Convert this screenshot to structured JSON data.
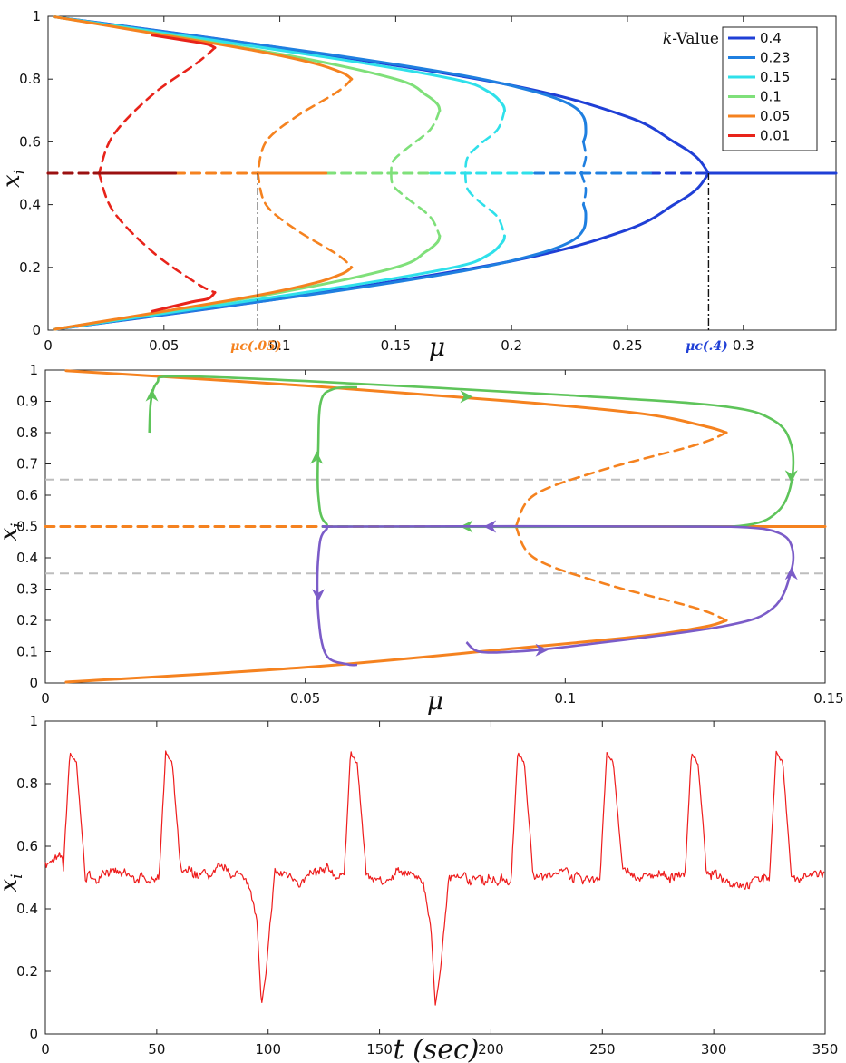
{
  "chart_data": [
    {
      "type": "line",
      "xlabel": "μ",
      "ylabel": "x_i",
      "xlim": [
        0,
        0.34
      ],
      "ylim": [
        0,
        1
      ],
      "xticks": [
        0,
        0.05,
        0.1,
        0.15,
        0.2,
        0.25,
        0.3
      ],
      "yticks": [
        0,
        0.2,
        0.4,
        0.6,
        0.8,
        1
      ],
      "legend": {
        "title_italic": "k",
        "title_rest": "-Value",
        "placement": "top-right",
        "entries": [
          {
            "label": "0.4",
            "color": "#1f3fd6"
          },
          {
            "label": "0.23",
            "color": "#1f7fe0"
          },
          {
            "label": "0.15",
            "color": "#2fe0ea"
          },
          {
            "label": "0.1",
            "color": "#7fe07a"
          },
          {
            "label": "0.05",
            "color": "#f5821f"
          },
          {
            "label": "0.01",
            "color": "#e8231a"
          }
        ]
      },
      "annotations": [
        {
          "label": "μc(.05)",
          "color": "#f5821f",
          "x": 0.0905,
          "y": 0.5
        },
        {
          "label": "μc(.4)",
          "color": "#1f3fd6",
          "x": 0.285,
          "y": 0.5
        }
      ],
      "series": [
        {
          "key": "k04",
          "color": "#1f3fd6",
          "stable_upper": [
            [
              0.003,
              0.998
            ],
            [
              0.1,
              0.9
            ],
            [
              0.2,
              0.78
            ],
            [
              0.25,
              0.68
            ],
            [
              0.27,
              0.6
            ],
            [
              0.28,
              0.55
            ],
            [
              0.285,
              0.5
            ]
          ],
          "stable_lower": [
            [
              0.003,
              0.003
            ],
            [
              0.1,
              0.1
            ],
            [
              0.2,
              0.22
            ],
            [
              0.25,
              0.32
            ],
            [
              0.27,
              0.4
            ],
            [
              0.28,
              0.45
            ],
            [
              0.285,
              0.5
            ]
          ],
          "baseline_unstable": [
            [
              0.26,
              0.5
            ],
            [
              0.285,
              0.5
            ]
          ],
          "baseline_stable": [
            [
              0.285,
              0.5
            ],
            [
              0.34,
              0.5
            ]
          ]
        },
        {
          "key": "k023",
          "color": "#1f7fe0",
          "stable_upper": [
            [
              0.003,
              0.998
            ],
            [
              0.12,
              0.88
            ],
            [
              0.18,
              0.81
            ],
            [
              0.21,
              0.76
            ],
            [
              0.225,
              0.72
            ],
            [
              0.231,
              0.68
            ],
            [
              0.232,
              0.63
            ],
            [
              0.231,
              0.6
            ]
          ],
          "unstable_upper": [
            [
              0.231,
              0.6
            ],
            [
              0.232,
              0.55
            ],
            [
              0.23,
              0.5
            ]
          ],
          "unstable_lower": [
            [
              0.23,
              0.5
            ],
            [
              0.232,
              0.45
            ],
            [
              0.231,
              0.4
            ]
          ],
          "stable_lower": [
            [
              0.231,
              0.4
            ],
            [
              0.232,
              0.37
            ],
            [
              0.231,
              0.32
            ],
            [
              0.225,
              0.28
            ],
            [
              0.21,
              0.24
            ],
            [
              0.18,
              0.19
            ],
            [
              0.12,
              0.12
            ],
            [
              0.003,
              0.003
            ]
          ],
          "baseline": [
            [
              0.21,
              0.5
            ],
            [
              0.26,
              0.5
            ]
          ]
        },
        {
          "key": "k015",
          "color": "#2fe0ea",
          "stable_upper": [
            [
              0.003,
              0.998
            ],
            [
              0.12,
              0.87
            ],
            [
              0.175,
              0.8
            ],
            [
              0.19,
              0.76
            ],
            [
              0.196,
              0.72
            ],
            [
              0.197,
              0.7
            ]
          ],
          "unstable_upper": [
            [
              0.197,
              0.7
            ],
            [
              0.194,
              0.64
            ],
            [
              0.186,
              0.59
            ],
            [
              0.181,
              0.55
            ],
            [
              0.18,
              0.5
            ]
          ],
          "unstable_lower": [
            [
              0.18,
              0.5
            ],
            [
              0.181,
              0.45
            ],
            [
              0.186,
              0.41
            ],
            [
              0.194,
              0.36
            ],
            [
              0.197,
              0.3
            ]
          ],
          "stable_lower": [
            [
              0.197,
              0.3
            ],
            [
              0.196,
              0.28
            ],
            [
              0.19,
              0.24
            ],
            [
              0.175,
              0.2
            ],
            [
              0.12,
              0.13
            ],
            [
              0.003,
              0.003
            ]
          ],
          "baseline": [
            [
              0.165,
              0.5
            ],
            [
              0.21,
              0.5
            ]
          ]
        },
        {
          "key": "k01",
          "color": "#7fe07a",
          "stable_upper": [
            [
              0.003,
              0.998
            ],
            [
              0.1,
              0.88
            ],
            [
              0.15,
              0.8
            ],
            [
              0.163,
              0.75
            ],
            [
              0.168,
              0.72
            ],
            [
              0.169,
              0.7
            ]
          ],
          "unstable_upper": [
            [
              0.169,
              0.7
            ],
            [
              0.165,
              0.64
            ],
            [
              0.155,
              0.58
            ],
            [
              0.149,
              0.54
            ],
            [
              0.148,
              0.5
            ]
          ],
          "unstable_lower": [
            [
              0.148,
              0.5
            ],
            [
              0.149,
              0.46
            ],
            [
              0.155,
              0.42
            ],
            [
              0.165,
              0.36
            ],
            [
              0.169,
              0.3
            ]
          ],
          "stable_lower": [
            [
              0.169,
              0.3
            ],
            [
              0.168,
              0.28
            ],
            [
              0.163,
              0.25
            ],
            [
              0.15,
              0.2
            ],
            [
              0.1,
              0.12
            ],
            [
              0.003,
              0.003
            ]
          ],
          "baseline": [
            [
              0.12,
              0.5
            ],
            [
              0.165,
              0.5
            ]
          ]
        },
        {
          "key": "k005",
          "color": "#f5821f",
          "stable_upper": [
            [
              0.003,
              0.998
            ],
            [
              0.05,
              0.94
            ],
            [
              0.09,
              0.89
            ],
            [
              0.115,
              0.85
            ],
            [
              0.127,
              0.82
            ],
            [
              0.131,
              0.8
            ]
          ],
          "unstable_upper": [
            [
              0.131,
              0.8
            ],
            [
              0.125,
              0.76
            ],
            [
              0.107,
              0.68
            ],
            [
              0.094,
              0.6
            ],
            [
              0.0905,
              0.5
            ]
          ],
          "unstable_lower": [
            [
              0.0905,
              0.5
            ],
            [
              0.094,
              0.4
            ],
            [
              0.107,
              0.32
            ],
            [
              0.125,
              0.24
            ],
            [
              0.131,
              0.2
            ]
          ],
          "stable_lower": [
            [
              0.131,
              0.2
            ],
            [
              0.127,
              0.18
            ],
            [
              0.115,
              0.15
            ],
            [
              0.09,
              0.11
            ],
            [
              0.05,
              0.06
            ],
            [
              0.003,
              0.003
            ]
          ],
          "baseline_unstable": [
            [
              0.055,
              0.5
            ],
            [
              0.0905,
              0.5
            ]
          ],
          "baseline_stable": [
            [
              0.0905,
              0.5
            ],
            [
              0.12,
              0.5
            ]
          ]
        },
        {
          "key": "k001",
          "color": "#e8231a",
          "stable_upper": [
            [
              0.045,
              0.94
            ],
            [
              0.062,
              0.92
            ],
            [
              0.069,
              0.91
            ],
            [
              0.072,
              0.9
            ]
          ],
          "unstable_upper": [
            [
              0.072,
              0.9
            ],
            [
              0.064,
              0.85
            ],
            [
              0.045,
              0.75
            ],
            [
              0.028,
              0.62
            ],
            [
              0.022,
              0.5
            ]
          ],
          "unstable_lower": [
            [
              0.022,
              0.5
            ],
            [
              0.028,
              0.38
            ],
            [
              0.045,
              0.25
            ],
            [
              0.064,
              0.15
            ],
            [
              0.072,
              0.12
            ]
          ],
          "stable_lower": [
            [
              0.072,
              0.12
            ],
            [
              0.069,
              0.1
            ],
            [
              0.062,
              0.09
            ],
            [
              0.045,
              0.06
            ]
          ],
          "baseline_unstable": [
            [
              0,
              0.5
            ],
            [
              0.022,
              0.5
            ]
          ],
          "baseline_stable": [
            [
              0.022,
              0.5
            ],
            [
              0.055,
              0.5
            ]
          ]
        }
      ]
    },
    {
      "type": "line",
      "xlabel": "μ",
      "ylabel": "x_i",
      "xlim": [
        0,
        0.15
      ],
      "ylim": [
        0,
        1
      ],
      "xticks": [
        0,
        0.05,
        0.1,
        0.15
      ],
      "yticks": [
        0,
        0.1,
        0.2,
        0.3,
        0.4,
        0.5,
        0.6,
        0.7,
        0.8,
        0.9,
        1
      ],
      "thresholds": [
        0.65,
        0.35
      ],
      "series": [
        {
          "name": "bifurcation k=0.05",
          "color": "#f5821f",
          "stable_upper": [
            [
              0.004,
              0.998
            ],
            [
              0.05,
              0.95
            ],
            [
              0.09,
              0.9
            ],
            [
              0.115,
              0.86
            ],
            [
              0.127,
              0.82
            ],
            [
              0.131,
              0.8
            ]
          ],
          "unstable_upper": [
            [
              0.131,
              0.8
            ],
            [
              0.125,
              0.76
            ],
            [
              0.107,
              0.68
            ],
            [
              0.094,
              0.6
            ],
            [
              0.0905,
              0.5
            ]
          ],
          "unstable_lower": [
            [
              0.0905,
              0.5
            ],
            [
              0.094,
              0.4
            ],
            [
              0.107,
              0.32
            ],
            [
              0.125,
              0.24
            ],
            [
              0.131,
              0.2
            ]
          ],
          "stable_lower": [
            [
              0.131,
              0.2
            ],
            [
              0.127,
              0.18
            ],
            [
              0.115,
              0.15
            ],
            [
              0.09,
              0.11
            ],
            [
              0.05,
              0.05
            ],
            [
              0.004,
              0.003
            ]
          ],
          "baseline_unstable": [
            [
              0,
              0.5
            ],
            [
              0.0905,
              0.5
            ]
          ],
          "baseline_stable": [
            [
              0.0905,
              0.5
            ],
            [
              0.15,
              0.5
            ]
          ]
        },
        {
          "name": "trajectory upper",
          "color": "#5ec45a",
          "path": [
            [
              0.02,
              0.8
            ],
            [
              0.0203,
              0.9
            ],
            [
              0.0215,
              0.96
            ],
            [
              0.025,
              0.98
            ],
            [
              0.05,
              0.965
            ],
            [
              0.1,
              0.92
            ],
            [
              0.13,
              0.885
            ],
            [
              0.14,
              0.84
            ],
            [
              0.1435,
              0.76
            ],
            [
              0.1435,
              0.64
            ],
            [
              0.141,
              0.55
            ],
            [
              0.135,
              0.505
            ],
            [
              0.12,
              0.5
            ],
            [
              0.06,
              0.5
            ],
            [
              0.054,
              0.51
            ],
            [
              0.0525,
              0.6
            ],
            [
              0.0525,
              0.75
            ],
            [
              0.053,
              0.9
            ],
            [
              0.0555,
              0.94
            ],
            [
              0.06,
              0.945
            ]
          ],
          "arrows": [
            [
              0.0205,
              0.92,
              "up"
            ],
            [
              0.0522,
              0.72,
              "up"
            ],
            [
              0.081,
              0.915,
              "right"
            ],
            [
              0.1435,
              0.66,
              "down"
            ],
            [
              0.081,
              0.5,
              "left"
            ]
          ]
        },
        {
          "name": "trajectory lower",
          "color": "#7b5cc8",
          "path": [
            [
              0.081,
              0.13
            ],
            [
              0.0835,
              0.1
            ],
            [
              0.09,
              0.1
            ],
            [
              0.1,
              0.115
            ],
            [
              0.13,
              0.18
            ],
            [
              0.14,
              0.24
            ],
            [
              0.1435,
              0.36
            ],
            [
              0.1435,
              0.44
            ],
            [
              0.141,
              0.48
            ],
            [
              0.135,
              0.497
            ],
            [
              0.12,
              0.5
            ],
            [
              0.06,
              0.5
            ],
            [
              0.054,
              0.49
            ],
            [
              0.0525,
              0.4
            ],
            [
              0.0525,
              0.22
            ],
            [
              0.054,
              0.09
            ],
            [
              0.058,
              0.06
            ],
            [
              0.06,
              0.058
            ]
          ],
          "arrows": [
            [
              0.0955,
              0.105,
              "right"
            ],
            [
              0.1435,
              0.35,
              "up"
            ],
            [
              0.0855,
              0.5,
              "left"
            ],
            [
              0.0525,
              0.28,
              "down"
            ]
          ]
        }
      ]
    },
    {
      "type": "line",
      "xlabel": "t (sec)",
      "ylabel": "x_i",
      "xlim": [
        0,
        350
      ],
      "ylim": [
        0,
        1
      ],
      "xticks": [
        0,
        50,
        100,
        150,
        200,
        250,
        300,
        350
      ],
      "yticks": [
        0,
        0.2,
        0.4,
        0.6,
        0.8,
        1
      ],
      "series": [
        {
          "name": "x_i(t)",
          "color": "#ee1c1c",
          "baseline": 0.5,
          "start_level": 0.55,
          "spikes_up": [
            11,
            54,
            137,
            212,
            252,
            290,
            328
          ],
          "spike_up_peak": 0.9,
          "spikes_down": [
            97,
            175
          ],
          "spike_down_min": 0.09
        }
      ]
    }
  ]
}
